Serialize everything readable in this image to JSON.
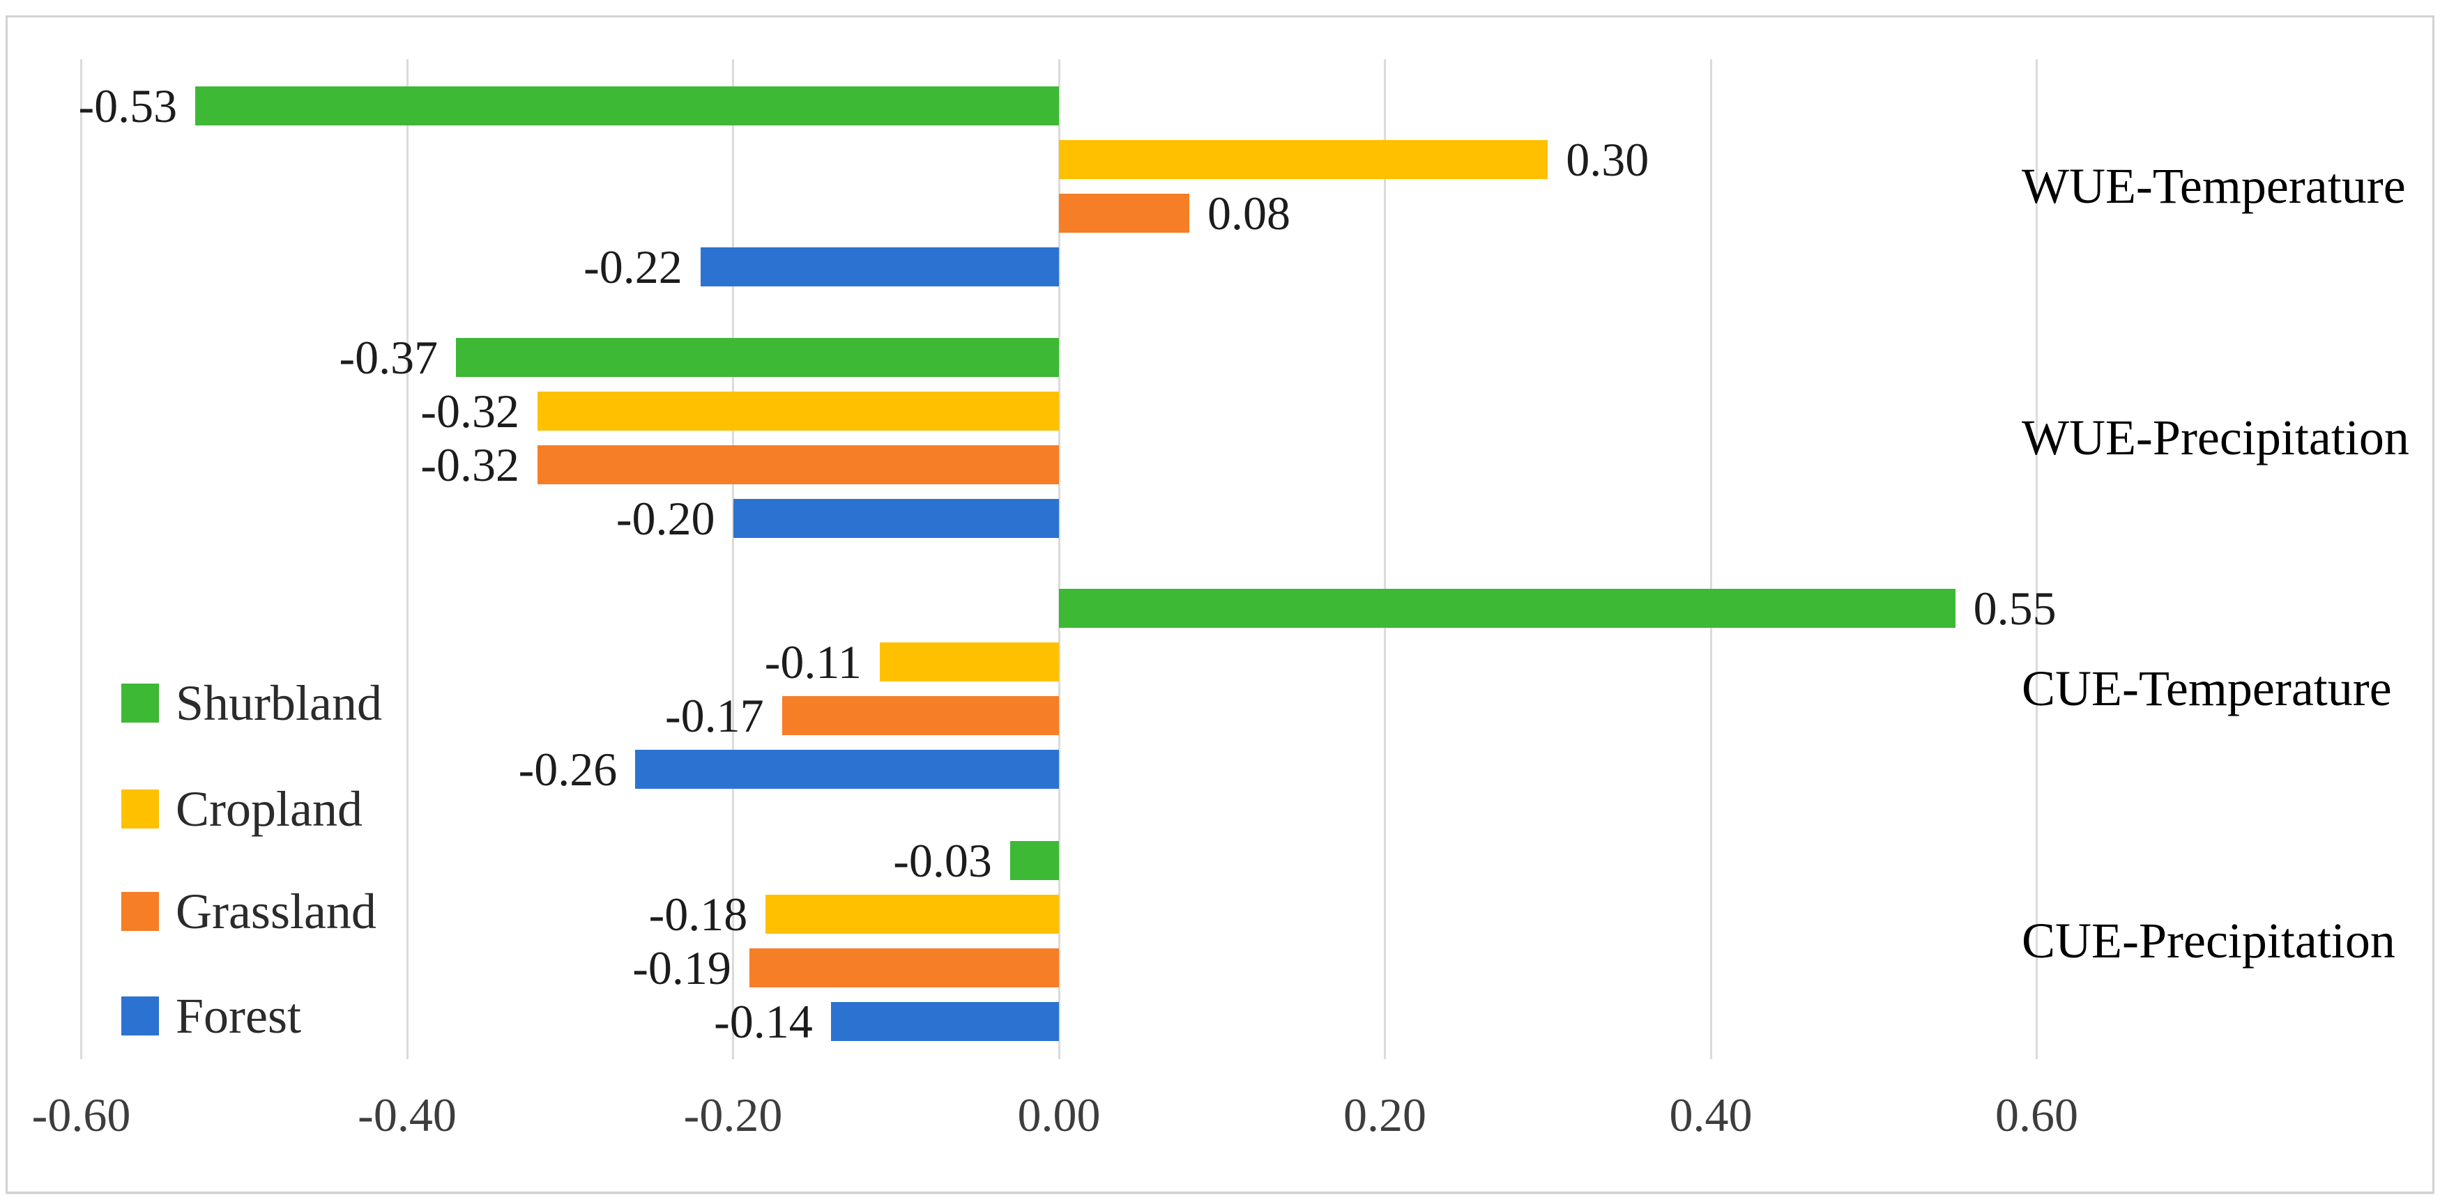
{
  "figure": {
    "background_color": "#ffffff",
    "frame_border_color": "#d2d2d2"
  },
  "chart_data": {
    "type": "bar",
    "orientation": "horizontal",
    "title": "",
    "xlabel": "",
    "ylabel": "",
    "grid": true,
    "gridline_color": "#dbdbdb",
    "categories": [
      "WUE-Temperature",
      "WUE-Precipitation",
      "CUE-Temperature",
      "CUE-Precipitation"
    ],
    "series": [
      {
        "name": "Shurbland",
        "color": "#3db935",
        "values": [
          -0.53,
          -0.37,
          0.55,
          -0.03
        ],
        "labels": [
          "-0.53",
          "-0.37",
          "0.55",
          "-0.03"
        ]
      },
      {
        "name": "Cropland",
        "color": "#ffc000",
        "values": [
          0.3,
          -0.32,
          -0.11,
          -0.18
        ],
        "labels": [
          "0.30",
          "-0.32",
          "-0.11",
          "-0.18"
        ]
      },
      {
        "name": "Grassland",
        "color": "#f57e27",
        "values": [
          0.08,
          -0.32,
          -0.17,
          -0.19
        ],
        "labels": [
          "0.08",
          "-0.32",
          "-0.17",
          "-0.19"
        ]
      },
      {
        "name": "Forest",
        "color": "#2c72d1",
        "values": [
          -0.22,
          -0.2,
          -0.26,
          -0.14
        ],
        "labels": [
          "-0.22",
          "-0.20",
          "-0.26",
          "-0.14"
        ]
      }
    ],
    "x_axis": {
      "min": -0.6,
      "max": 0.6,
      "tick_step": 0.2,
      "ticks": [
        -0.6,
        -0.4,
        -0.2,
        0.0,
        0.2,
        0.4,
        0.6
      ],
      "tick_labels": [
        "-0.60",
        "-0.40",
        "-0.20",
        "0.00",
        "0.20",
        "0.40",
        "0.60"
      ]
    },
    "legend": {
      "position": "middle-left",
      "entries": [
        {
          "label": "Shurbland",
          "color": "#3db935"
        },
        {
          "label": "Cropland",
          "color": "#ffc000"
        },
        {
          "label": "Grassland",
          "color": "#f57e27"
        },
        {
          "label": "Forest",
          "color": "#2c72d1"
        }
      ]
    }
  }
}
